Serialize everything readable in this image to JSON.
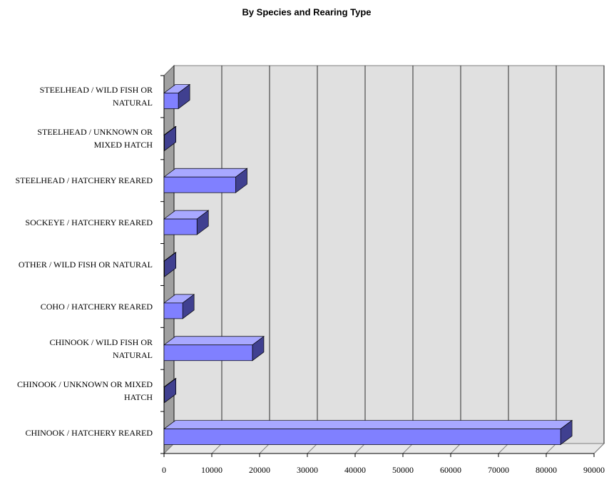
{
  "chart_data": {
    "type": "bar",
    "orientation": "horizontal",
    "title": "By Species and Rearing Type",
    "categories": [
      "CHINOOK / HATCHERY REARED",
      "CHINOOK / UNKNOWN OR MIXED HATCH",
      "CHINOOK / WILD FISH OR NATURAL",
      "COHO / HATCHERY REARED",
      "OTHER / WILD FISH OR NATURAL",
      "SOCKEYE / HATCHERY REARED",
      "STEELHEAD / HATCHERY REARED",
      "STEELHEAD / UNKNOWN OR MIXED HATCH",
      "STEELHEAD / WILD FISH OR NATURAL"
    ],
    "values": [
      83000,
      100,
      18500,
      3900,
      100,
      6900,
      15000,
      100,
      3000
    ],
    "color": "#8080ff",
    "xlim": [
      0,
      90000
    ],
    "xticks": [
      0,
      10000,
      20000,
      30000,
      40000,
      50000,
      60000,
      70000,
      80000,
      90000
    ],
    "grid": true
  }
}
